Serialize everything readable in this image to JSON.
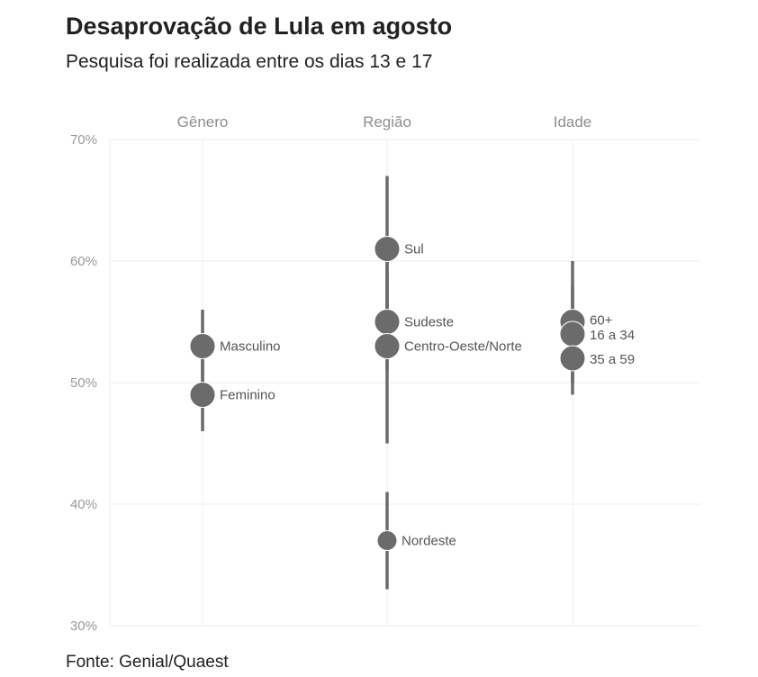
{
  "title": "Desaprovação de Lula em agosto",
  "subtitle": "Pesquisa foi realizada entre os dias 13 e 17",
  "source": "Fonte: Genial/Quaest",
  "chart_data": {
    "type": "scatter",
    "ylim": [
      30,
      70
    ],
    "yticks": [
      "30%",
      "40%",
      "50%",
      "60%",
      "70%"
    ],
    "groups": [
      "Gênero",
      "Região",
      "Idade"
    ],
    "color": "#6b6b6b",
    "points": [
      {
        "group": "Gênero",
        "label": "Masculino",
        "value": 53,
        "low": 50,
        "high": 56
      },
      {
        "group": "Gênero",
        "label": "Feminino",
        "value": 49,
        "low": 46,
        "high": 52
      },
      {
        "group": "Região",
        "label": "Sul",
        "value": 61,
        "low": 55,
        "high": 67
      },
      {
        "group": "Região",
        "label": "Sudeste",
        "value": 55,
        "low": 51,
        "high": 59
      },
      {
        "group": "Região",
        "label": "Centro-Oeste/Norte",
        "value": 53,
        "low": 45,
        "high": 61
      },
      {
        "group": "Região",
        "label": "Nordeste",
        "value": 37,
        "low": 33,
        "high": 41
      },
      {
        "group": "Idade",
        "label": "60+",
        "value": 55,
        "low": 50,
        "high": 60
      },
      {
        "group": "Idade",
        "label": "16 a 34",
        "value": 54,
        "low": 50,
        "high": 58
      },
      {
        "group": "Idade",
        "label": "35 a 59",
        "value": 52,
        "low": 49,
        "high": 55
      }
    ]
  }
}
